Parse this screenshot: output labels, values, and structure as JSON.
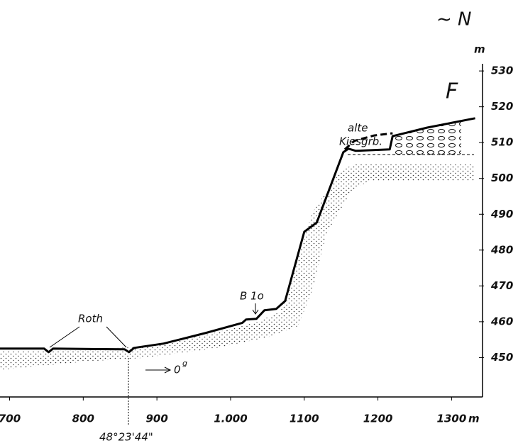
{
  "chart_data": {
    "type": "line",
    "corner_label": "~ N",
    "section_label": "F",
    "y_unit": "m",
    "x_unit": "m",
    "annotations": {
      "stream": "Roth",
      "pit_line1": "alte",
      "pit_line2": "Kiesgrb.",
      "boring": "B 1o",
      "direction": "0",
      "direction_sup": "g",
      "coordinate": "48°23'44\""
    },
    "xlim": [
      687,
      1342
    ],
    "ylim": [
      439,
      532
    ],
    "xticks": [
      700,
      800,
      900,
      {
        "value": 1000,
        "label": "1.000"
      },
      1100,
      1200,
      1300
    ],
    "yticks": [
      450,
      460,
      470,
      480,
      490,
      500,
      510,
      520,
      530
    ],
    "series": [
      {
        "color": "#000000",
        "dash": false,
        "x": [
          687,
          747,
          753,
          759,
          856,
          862,
          869,
          909,
          967,
          1016,
          1021,
          1035,
          1046,
          1062,
          1074,
          1100,
          1117,
          1153,
          1160,
          1170,
          1216,
          1220,
          1267,
          1332
        ],
        "values": [
          452.5,
          452.5,
          451.5,
          452.5,
          452.3,
          451.5,
          452.7,
          453.9,
          456.9,
          459.7,
          460.6,
          460.8,
          463.2,
          463.6,
          465.8,
          485.1,
          487.7,
          507.3,
          508.3,
          507.7,
          508.1,
          511.8,
          514.2,
          516.8
        ]
      },
      {
        "color": "#000000",
        "dash": true,
        "x": [
          1155,
          1168,
          1195,
          1220
        ],
        "values": [
          508.1,
          510.5,
          512,
          512.6
        ]
      }
    ]
  }
}
